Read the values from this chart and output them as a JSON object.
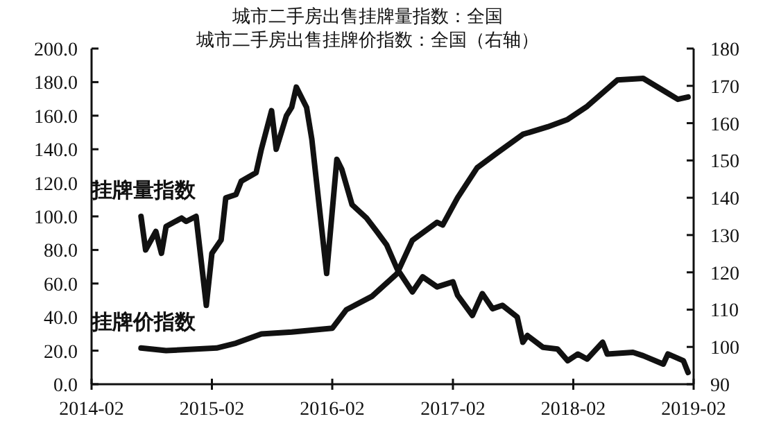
{
  "chart_data": {
    "type": "line",
    "title": "城市二手房出售挂牌量指数：全国",
    "subtitle": "城市二手房出售挂牌价指数：全国（右轴）",
    "xlim": [
      "2014-02",
      "2019-02"
    ],
    "xticks": [
      {
        "value": "2014-02",
        "label": "2014-02"
      },
      {
        "value": "2015-02",
        "label": "2015-02"
      },
      {
        "value": "2016-02",
        "label": "2016-02"
      },
      {
        "value": "2017-02",
        "label": "2017-02"
      },
      {
        "value": "2018-02",
        "label": "2018-02"
      },
      {
        "value": "2019-02",
        "label": "2019-02"
      }
    ],
    "ylim": [
      0,
      200
    ],
    "yticks": [
      {
        "value": 0,
        "label": "0.0"
      },
      {
        "value": 20,
        "label": "20.0"
      },
      {
        "value": 40,
        "label": "40.0"
      },
      {
        "value": 60,
        "label": "60.0"
      },
      {
        "value": 80,
        "label": "80.0"
      },
      {
        "value": 100,
        "label": "100.0"
      },
      {
        "value": 120,
        "label": "120.0"
      },
      {
        "value": 140,
        "label": "140.0"
      },
      {
        "value": 160,
        "label": "160.0"
      },
      {
        "value": 180,
        "label": "180.0"
      },
      {
        "value": 200,
        "label": "200.0"
      }
    ],
    "y2lim": [
      90,
      180
    ],
    "y2ticks": [
      90,
      100,
      110,
      120,
      130,
      140,
      150,
      160,
      170,
      180
    ],
    "grid": false,
    "legend": false,
    "line_style": "solid",
    "series": [
      {
        "name": "挂牌量指数",
        "color": "#111111",
        "x": [
          "2014-07-01",
          "2014-07-15",
          "2014-08-15",
          "2014-09-01",
          "2014-09-15",
          "2014-11-01",
          "2014-11-15",
          "2014-12-15",
          "2015-01-15",
          "2015-02-01",
          "2015-03-01",
          "2015-03-15",
          "2015-04-15",
          "2015-05-01",
          "2015-06-15",
          "2015-07-01",
          "2015-08-01",
          "2015-08-15",
          "2015-09-15",
          "2015-10-01",
          "2015-10-15",
          "2015-11-15",
          "2015-12-01",
          "2016-01-15",
          "2016-02-15",
          "2016-03-01",
          "2016-04-01",
          "2016-05-15",
          "2016-06-15",
          "2016-07-15",
          "2016-08-15",
          "2016-10-01",
          "2016-11-01",
          "2016-12-15",
          "2017-02-01",
          "2017-02-15",
          "2017-04-01",
          "2017-05-01",
          "2017-06-01",
          "2017-07-01",
          "2017-08-15",
          "2017-09-01",
          "2017-09-15",
          "2017-11-01",
          "2017-12-15",
          "2018-01-15",
          "2018-02-15",
          "2018-03-15",
          "2018-05-01",
          "2018-05-15",
          "2018-08-01",
          "2018-09-01",
          "2018-11-01",
          "2018-11-15",
          "2019-01-01",
          "2019-01-15"
        ],
        "values": [
          100,
          80,
          91,
          78,
          94,
          99,
          97,
          100,
          47,
          78,
          86,
          111,
          113,
          121,
          126,
          140,
          163,
          140,
          160,
          165,
          177,
          165,
          146,
          66,
          134,
          128,
          107,
          99,
          91,
          83,
          69,
          55,
          64,
          58,
          61,
          53,
          41,
          54,
          45,
          47,
          40,
          25,
          29,
          22,
          21,
          14,
          18,
          15,
          25,
          18,
          19,
          17,
          12,
          18,
          14,
          7
        ]
      },
      {
        "name": "挂牌价指数",
        "color": "#111111",
        "axis": "y2",
        "x": [
          "2014-07-01",
          "2014-09-15",
          "2015-02-15",
          "2015-04-15",
          "2015-07-01",
          "2015-10-01",
          "2016-02-01",
          "2016-03-15",
          "2016-06-01",
          "2016-08-15",
          "2016-10-01",
          "2016-12-15",
          "2017-01-01",
          "2017-02-15",
          "2017-04-15",
          "2017-06-15",
          "2017-09-01",
          "2017-11-15",
          "2018-01-15",
          "2018-03-15",
          "2018-06-15",
          "2018-09-01",
          "2018-11-15",
          "2018-12-15",
          "2019-01-15"
        ],
        "values": [
          99.7,
          99,
          99.7,
          101,
          103.5,
          104,
          105,
          110,
          113.6,
          119.6,
          128.6,
          133.4,
          132.7,
          140,
          148,
          152,
          157,
          159,
          161,
          164.5,
          171.6,
          172,
          168,
          166.4,
          167
        ]
      }
    ]
  }
}
